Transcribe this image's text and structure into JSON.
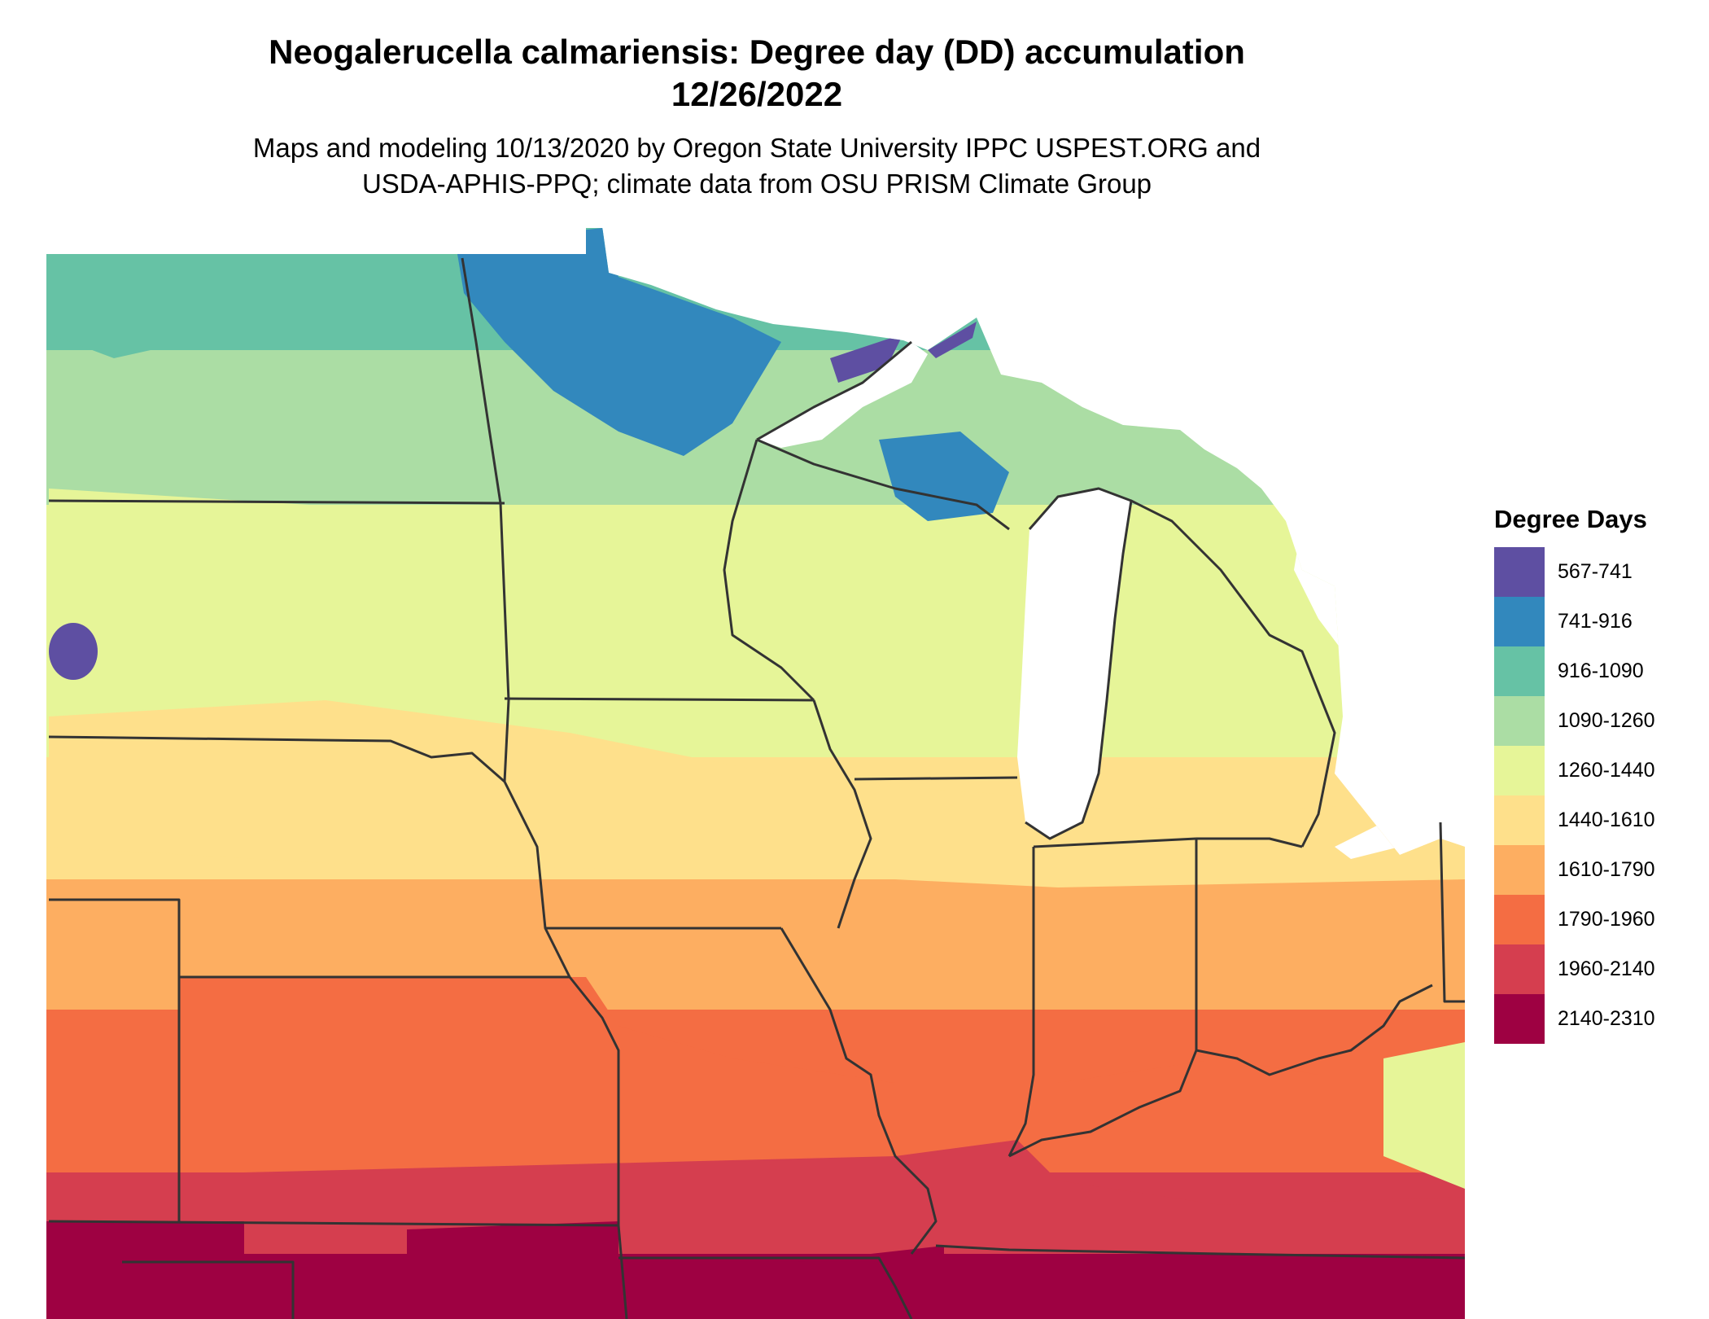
{
  "title_line1": "Neogalerucella calmariensis: Degree day (DD) accumulation",
  "title_line2": "12/26/2022",
  "subtitle_line1": "Maps and modeling 10/13/2020 by Oregon State University IPPC USPEST.ORG and",
  "subtitle_line2": "USDA-APHIS-PPQ; climate data from OSU PRISM Climate Group",
  "legend": {
    "title": "Degree Days",
    "items": [
      {
        "label": "567-741",
        "color": "#5e4fa2"
      },
      {
        "label": "741-916",
        "color": "#3288bd"
      },
      {
        "label": "916-1090",
        "color": "#66c2a5"
      },
      {
        "label": "1090-1260",
        "color": "#abdda4"
      },
      {
        "label": "1260-1440",
        "color": "#e6f598"
      },
      {
        "label": "1440-1610",
        "color": "#fee08b"
      },
      {
        "label": "1610-1790",
        "color": "#fdae61"
      },
      {
        "label": "1790-1960",
        "color": "#f46d43"
      },
      {
        "label": "1960-2140",
        "color": "#d53e4f"
      },
      {
        "label": "2140-2310",
        "color": "#9e0142"
      }
    ]
  },
  "colors": {
    "water": "#ffffff",
    "state_borders": "#333333"
  }
}
